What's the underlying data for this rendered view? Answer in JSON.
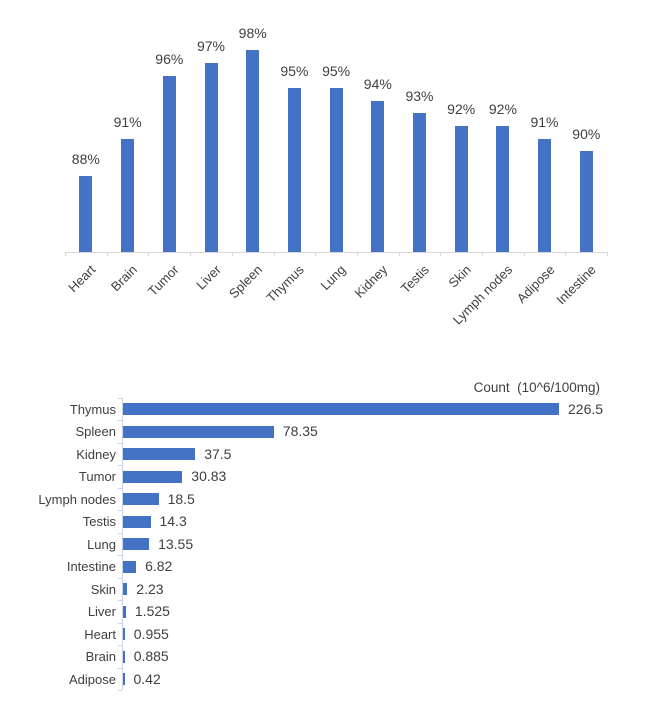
{
  "figure": {
    "background": "#ffffff",
    "description": "Two bar charts: tissue viability percentages (top) and cell count per tissue (bottom)"
  },
  "colors": {
    "bar_fill": "#4472C4",
    "axis_line_top": "#D9D9D9",
    "axis_line_bottom": "#CBD5E8",
    "label_text": "#404040"
  },
  "chart_data": [
    {
      "type": "bar",
      "orientation": "vertical",
      "title": "",
      "xlabel": "",
      "ylabel": "",
      "categories": [
        "Heart",
        "Brain",
        "Tumor",
        "Liver",
        "Spleen",
        "Thymus",
        "Lung",
        "Kidney",
        "Testis",
        "Skin",
        "Lymph nodes",
        "Adipose",
        "Intestine"
      ],
      "values": [
        88,
        91,
        96,
        97,
        98,
        95,
        95,
        94,
        93,
        92,
        92,
        91,
        90
      ],
      "data_labels": [
        "88%",
        "91%",
        "96%",
        "97%",
        "98%",
        "95%",
        "95%",
        "94%",
        "93%",
        "92%",
        "92%",
        "91%",
        "90%"
      ],
      "unit": "%",
      "ylim": [
        82,
        100
      ],
      "grid": false,
      "legend": "none"
    },
    {
      "type": "bar",
      "orientation": "horizontal",
      "title": "Count  (10^6/100mg)",
      "xlabel": "",
      "ylabel": "",
      "categories": [
        "Thymus",
        "Spleen",
        "Kidney",
        "Tumor",
        "Lymph nodes",
        "Testis",
        "Lung",
        "Intestine",
        "Skin",
        "Liver",
        "Heart",
        "Brain",
        "Adipose"
      ],
      "values": [
        226.5,
        78.35,
        37.5,
        30.83,
        18.5,
        14.3,
        13.55,
        6.82,
        2.23,
        1.525,
        0.955,
        0.885,
        0.42
      ],
      "data_labels": [
        "226.5",
        "78.35",
        "37.5",
        "30.83",
        "18.5",
        "14.3",
        "13.55",
        "6.82",
        "2.23",
        "1.525",
        "0.955",
        "0.885",
        "0.42"
      ],
      "xlim": [
        0,
        240
      ],
      "grid": false,
      "legend": "none"
    }
  ]
}
